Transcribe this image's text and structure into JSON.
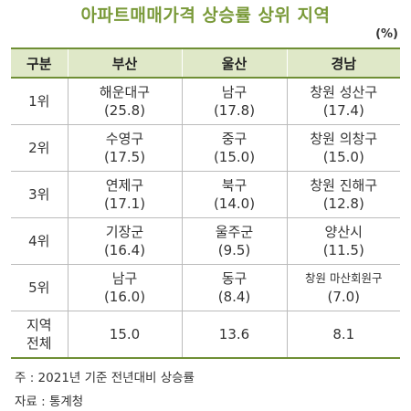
{
  "title": "아파트매매가격 상승률 상위 지역",
  "unit": "(%)",
  "table": {
    "header": [
      "구분",
      "부산",
      "울산",
      "경남"
    ],
    "rows": [
      {
        "label": [
          "1위"
        ],
        "cells": [
          [
            "해운대구",
            "(25.8)"
          ],
          [
            "남구",
            "(17.8)"
          ],
          [
            "창원 성산구",
            "(17.4)"
          ]
        ]
      },
      {
        "label": [
          "2위"
        ],
        "cells": [
          [
            "수영구",
            "(17.5)"
          ],
          [
            "중구",
            "(15.0)"
          ],
          [
            "창원 의창구",
            "(15.0)"
          ]
        ]
      },
      {
        "label": [
          "3위"
        ],
        "cells": [
          [
            "연제구",
            "(17.1)"
          ],
          [
            "북구",
            "(14.0)"
          ],
          [
            "창원 진해구",
            "(12.8)"
          ]
        ]
      },
      {
        "label": [
          "4위"
        ],
        "cells": [
          [
            "기장군",
            "(16.4)"
          ],
          [
            "울주군",
            "(9.5)"
          ],
          [
            "양산시",
            "(11.5)"
          ]
        ]
      },
      {
        "label": [
          "5위"
        ],
        "cells": [
          [
            "남구",
            "(16.0)"
          ],
          [
            "동구",
            "(8.4)"
          ],
          [
            "창원 마산회원구",
            "(7.0)"
          ]
        ]
      },
      {
        "label": [
          "지역",
          "전체"
        ],
        "cells": [
          [
            "15.0"
          ],
          [
            "13.6"
          ],
          [
            "8.1"
          ]
        ]
      }
    ]
  },
  "notes": [
    "주 : 2021년 기준 전년대비 상승률",
    "자료 : 통계청"
  ]
}
